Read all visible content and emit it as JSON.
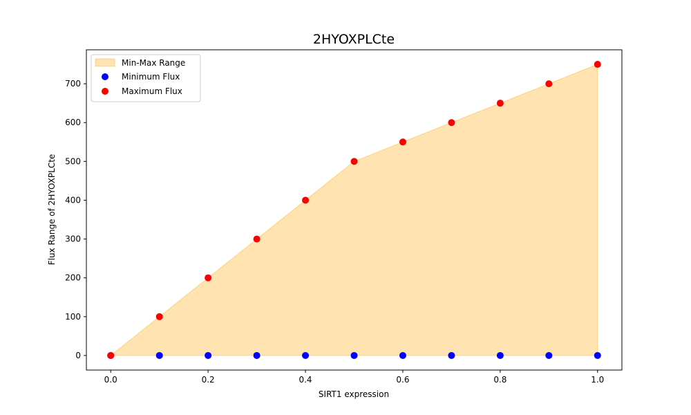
{
  "chart_data": {
    "type": "scatter",
    "title": "2HYOXPLCte",
    "xlabel": "SIRT1 expression",
    "ylabel": "Flux Range of 2HYOXPLCte",
    "x": [
      0.0,
      0.1,
      0.2,
      0.3,
      0.4,
      0.5,
      0.6,
      0.7,
      0.8,
      0.9,
      1.0
    ],
    "series": [
      {
        "name": "Minimum Flux",
        "values": [
          0,
          0,
          0,
          0,
          0,
          0,
          0,
          0,
          0,
          0,
          0
        ],
        "color": "#0000ff"
      },
      {
        "name": "Maximum Flux",
        "values": [
          0,
          100,
          200,
          300,
          400,
          500,
          550,
          600,
          650,
          700,
          750
        ],
        "color": "#ff0000"
      }
    ],
    "fill": {
      "name": "Min-Max Range",
      "color": "#ffa500",
      "opacity": 0.3
    },
    "xlim": [
      -0.05,
      1.05
    ],
    "ylim": [
      -37.5,
      787.5
    ],
    "xticks": [
      0.0,
      0.2,
      0.4,
      0.6,
      0.8,
      1.0
    ],
    "xtick_labels": [
      "0.0",
      "0.2",
      "0.4",
      "0.6",
      "0.8",
      "1.0"
    ],
    "yticks": [
      0,
      100,
      200,
      300,
      400,
      500,
      600,
      700
    ],
    "ytick_labels": [
      "0",
      "100",
      "200",
      "300",
      "400",
      "500",
      "600",
      "700"
    ],
    "legend": {
      "placement": "upper-left",
      "entries": [
        "Min-Max Range",
        "Minimum Flux",
        "Maximum Flux"
      ]
    },
    "grid": false
  }
}
